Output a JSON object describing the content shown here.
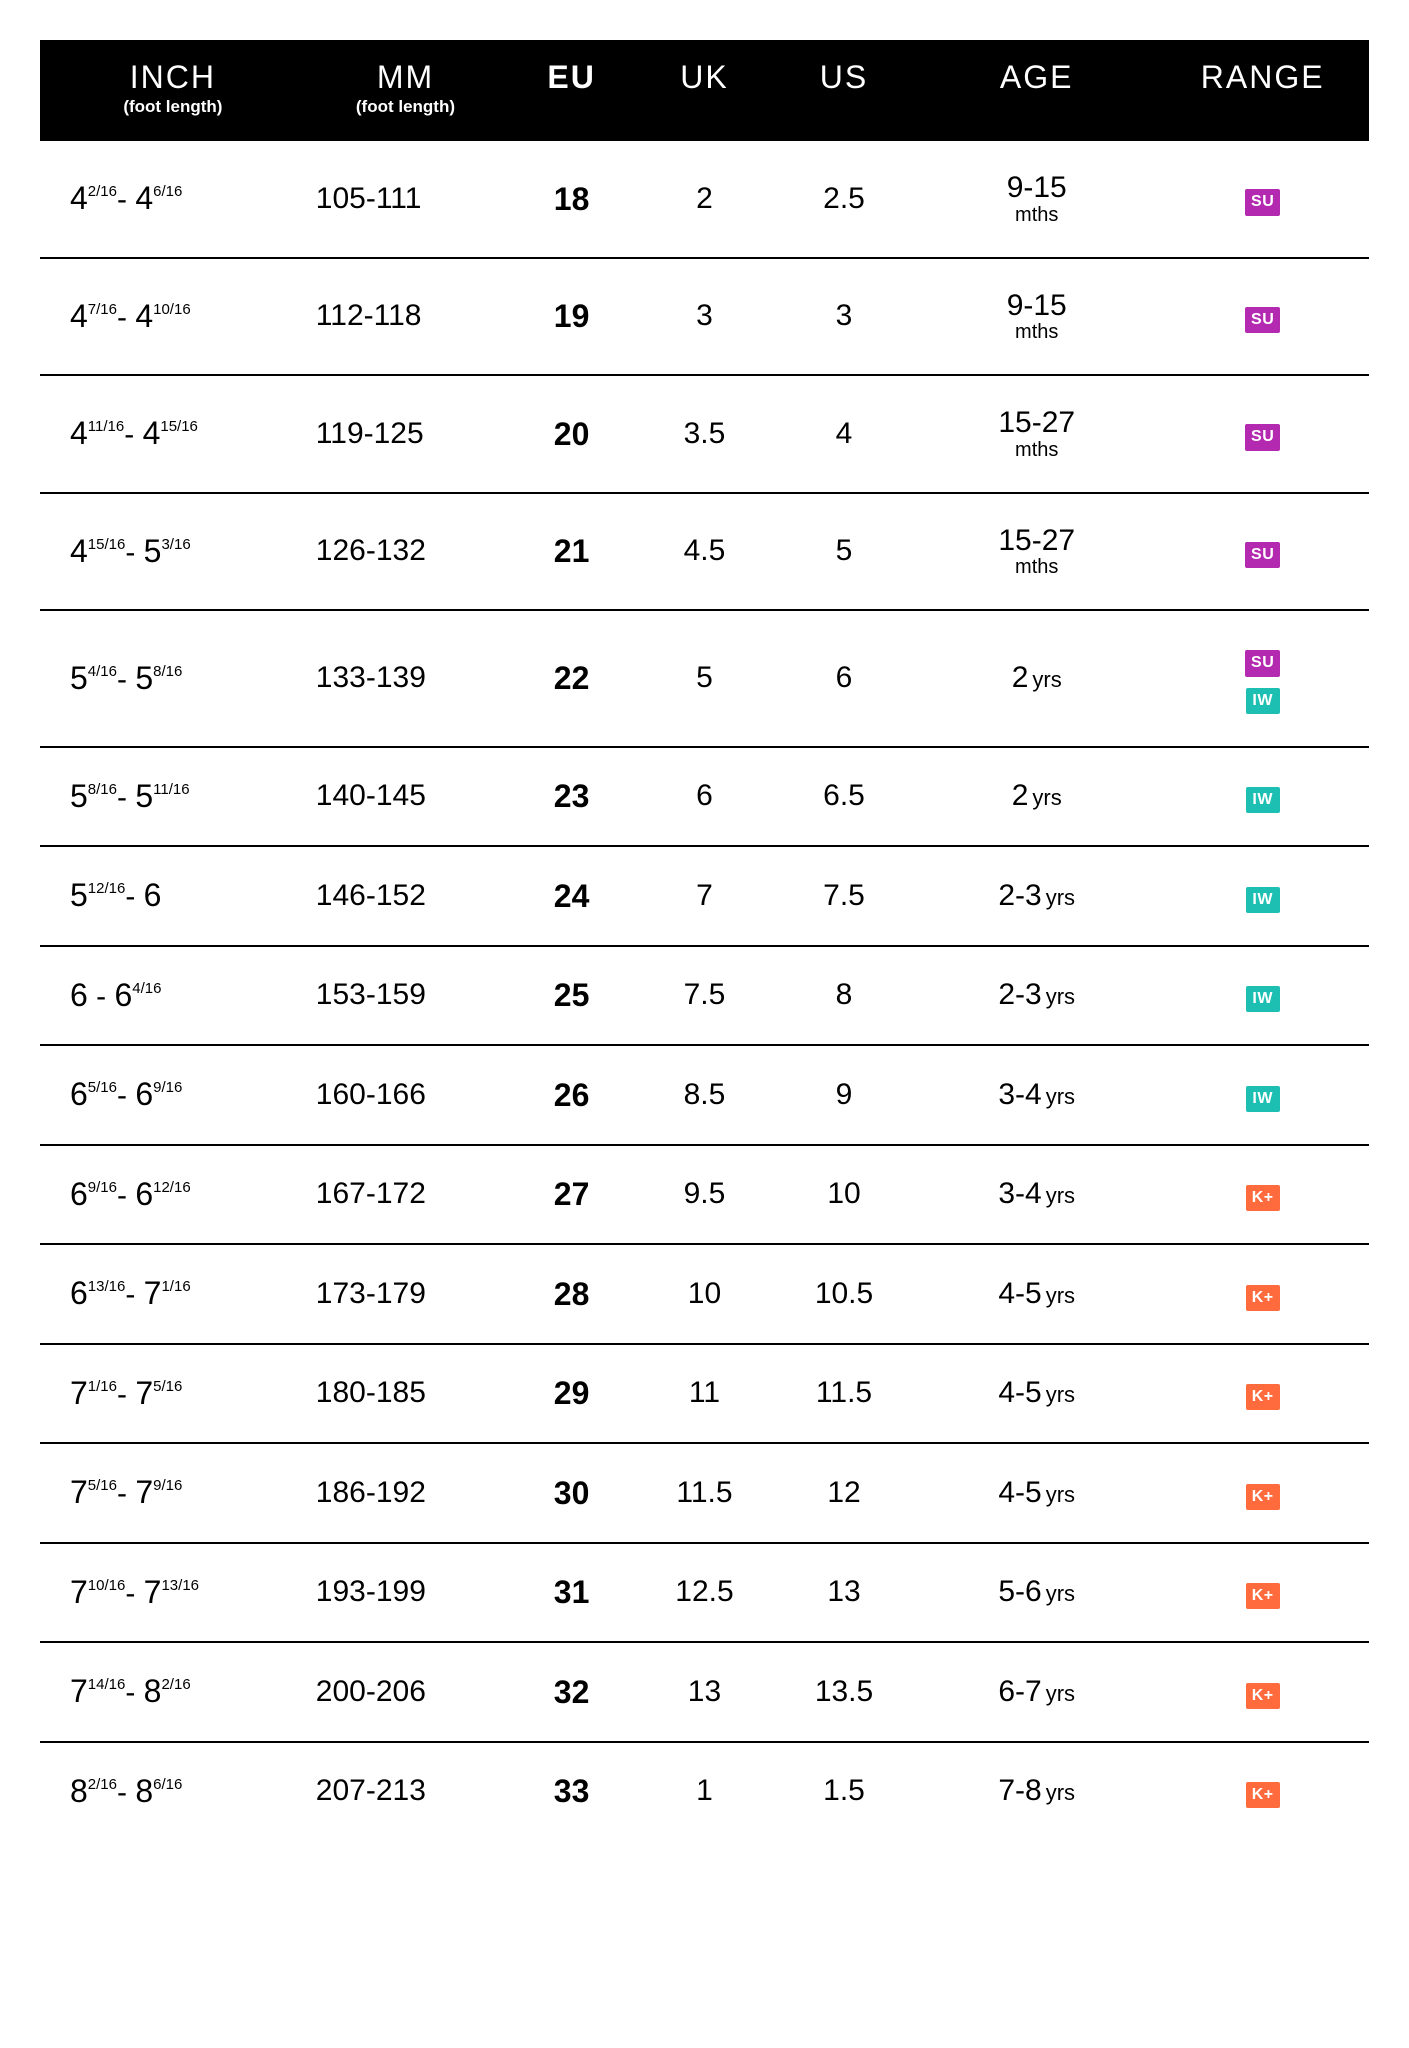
{
  "colors": {
    "header_bg": "#000000",
    "header_fg": "#ffffff",
    "border": "#000000",
    "badge_SU": "#b32ab0",
    "badge_IW": "#1cbfb2",
    "badge_KP": "#ff6b3d"
  },
  "headers": {
    "inch": "INCH",
    "inch_sub": "(foot length)",
    "mm": "MM",
    "mm_sub": "(foot length)",
    "eu": "EU",
    "uk": "UK",
    "us": "US",
    "age": "AGE",
    "range": "RANGE"
  },
  "badge_labels": {
    "SU": "SU",
    "IW": "IW",
    "KP": "K+"
  },
  "rows": [
    {
      "inch_lo_w": "4",
      "inch_lo_f": "2/16",
      "inch_hi_w": "4",
      "inch_hi_f": "6/16",
      "mm": "105-111",
      "eu": "18",
      "uk": "2",
      "us": "2.5",
      "age_num": "9-15",
      "age_unit": "mths",
      "age_below": true,
      "badges": [
        "SU"
      ]
    },
    {
      "inch_lo_w": "4",
      "inch_lo_f": "7/16",
      "inch_hi_w": "4",
      "inch_hi_f": "10/16",
      "mm": "112-118",
      "eu": "19",
      "uk": "3",
      "us": "3",
      "age_num": "9-15",
      "age_unit": "mths",
      "age_below": true,
      "badges": [
        "SU"
      ]
    },
    {
      "inch_lo_w": "4",
      "inch_lo_f": "11/16",
      "inch_hi_w": "4",
      "inch_hi_f": "15/16",
      "mm": "119-125",
      "eu": "20",
      "uk": "3.5",
      "us": "4",
      "age_num": "15-27",
      "age_unit": "mths",
      "age_below": true,
      "badges": [
        "SU"
      ]
    },
    {
      "inch_lo_w": "4",
      "inch_lo_f": "15/16",
      "inch_hi_w": "5",
      "inch_hi_f": "3/16",
      "mm": "126-132",
      "eu": "21",
      "uk": "4.5",
      "us": "5",
      "age_num": "15-27",
      "age_unit": "mths",
      "age_below": true,
      "badges": [
        "SU"
      ]
    },
    {
      "inch_lo_w": "5",
      "inch_lo_f": "4/16",
      "inch_hi_w": "5",
      "inch_hi_f": "8/16",
      "mm": "133-139",
      "eu": "22",
      "uk": "5",
      "us": "6",
      "age_num": "2",
      "age_unit": "yrs",
      "age_below": false,
      "badges": [
        "SU",
        "IW"
      ]
    },
    {
      "inch_lo_w": "5",
      "inch_lo_f": "8/16",
      "inch_hi_w": "5",
      "inch_hi_f": "11/16",
      "mm": "140-145",
      "eu": "23",
      "uk": "6",
      "us": "6.5",
      "age_num": "2",
      "age_unit": "yrs",
      "age_below": false,
      "badges": [
        "IW"
      ]
    },
    {
      "inch_lo_w": "5",
      "inch_lo_f": "12/16",
      "inch_hi_w": "6",
      "inch_hi_f": "",
      "mm": "146-152",
      "eu": "24",
      "uk": "7",
      "us": "7.5",
      "age_num": "2-3",
      "age_unit": "yrs",
      "age_below": false,
      "badges": [
        "IW"
      ]
    },
    {
      "inch_lo_w": "6",
      "inch_lo_f": "",
      "inch_hi_w": "6",
      "inch_hi_f": "4/16",
      "mm": "153-159",
      "eu": "25",
      "uk": "7.5",
      "us": "8",
      "age_num": "2-3",
      "age_unit": "yrs",
      "age_below": false,
      "badges": [
        "IW"
      ]
    },
    {
      "inch_lo_w": "6",
      "inch_lo_f": "5/16",
      "inch_hi_w": "6",
      "inch_hi_f": "9/16",
      "mm": "160-166",
      "eu": "26",
      "uk": "8.5",
      "us": "9",
      "age_num": "3-4",
      "age_unit": "yrs",
      "age_below": false,
      "badges": [
        "IW"
      ]
    },
    {
      "inch_lo_w": "6",
      "inch_lo_f": "9/16",
      "inch_hi_w": "6",
      "inch_hi_f": "12/16",
      "mm": "167-172",
      "eu": "27",
      "uk": "9.5",
      "us": "10",
      "age_num": "3-4",
      "age_unit": "yrs",
      "age_below": false,
      "badges": [
        "KP"
      ]
    },
    {
      "inch_lo_w": "6",
      "inch_lo_f": "13/16",
      "inch_hi_w": "7",
      "inch_hi_f": "1/16",
      "mm": "173-179",
      "eu": "28",
      "uk": "10",
      "us": "10.5",
      "age_num": "4-5",
      "age_unit": "yrs",
      "age_below": false,
      "badges": [
        "KP"
      ]
    },
    {
      "inch_lo_w": "7",
      "inch_lo_f": "1/16",
      "inch_hi_w": "7",
      "inch_hi_f": "5/16",
      "mm": "180-185",
      "eu": "29",
      "uk": "11",
      "us": "11.5",
      "age_num": "4-5",
      "age_unit": "yrs",
      "age_below": false,
      "badges": [
        "KP"
      ]
    },
    {
      "inch_lo_w": "7",
      "inch_lo_f": "5/16",
      "inch_hi_w": "7",
      "inch_hi_f": "9/16",
      "mm": "186-192",
      "eu": "30",
      "uk": "11.5",
      "us": "12",
      "age_num": "4-5",
      "age_unit": "yrs",
      "age_below": false,
      "badges": [
        "KP"
      ]
    },
    {
      "inch_lo_w": "7",
      "inch_lo_f": "10/16",
      "inch_hi_w": "7",
      "inch_hi_f": "13/16",
      "mm": "193-199",
      "eu": "31",
      "uk": "12.5",
      "us": "13",
      "age_num": "5-6",
      "age_unit": "yrs",
      "age_below": false,
      "badges": [
        "KP"
      ]
    },
    {
      "inch_lo_w": "7",
      "inch_lo_f": "14/16",
      "inch_hi_w": "8",
      "inch_hi_f": "2/16",
      "mm": "200-206",
      "eu": "32",
      "uk": "13",
      "us": "13.5",
      "age_num": "6-7",
      "age_unit": "yrs",
      "age_below": false,
      "badges": [
        "KP"
      ]
    },
    {
      "inch_lo_w": "8",
      "inch_lo_f": "2/16",
      "inch_hi_w": "8",
      "inch_hi_f": "6/16",
      "mm": "207-213",
      "eu": "33",
      "uk": "1",
      "us": "1.5",
      "age_num": "7-8",
      "age_unit": "yrs",
      "age_below": false,
      "badges": [
        "KP"
      ]
    }
  ]
}
